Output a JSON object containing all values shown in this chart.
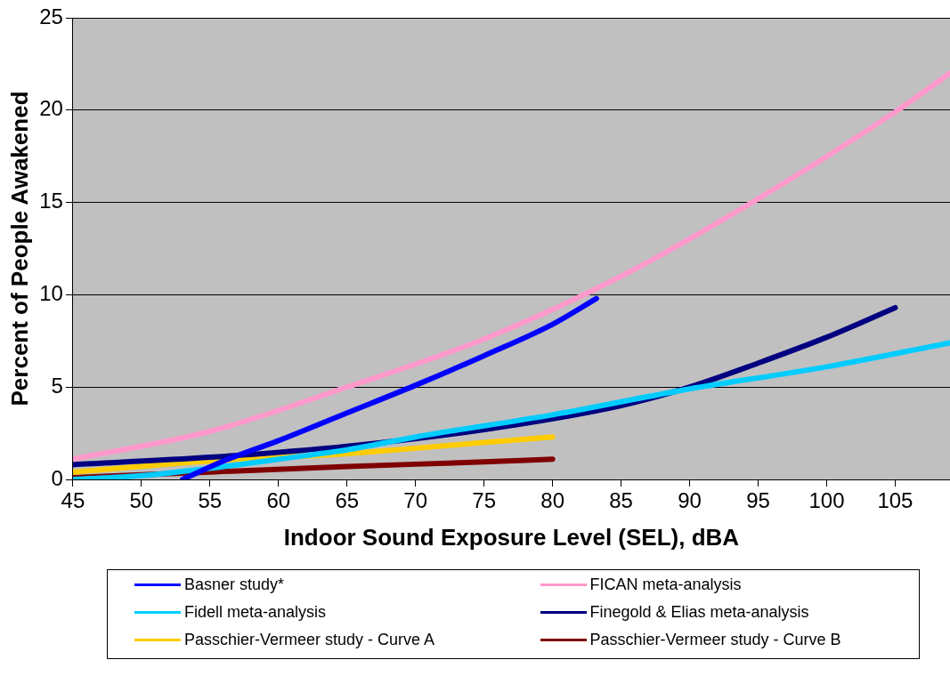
{
  "chart_data": {
    "type": "line",
    "xlabel": "Indoor Sound Exposure Level (SEL), dBA",
    "ylabel": "Percent of People Awakened",
    "xlim": [
      45,
      109
    ],
    "xticks": [
      45,
      50,
      55,
      60,
      65,
      70,
      75,
      80,
      85,
      90,
      95,
      100,
      105
    ],
    "ylim": [
      0,
      25
    ],
    "yticks": [
      0,
      5,
      10,
      15,
      20,
      25
    ],
    "grid": "y",
    "legend": "bottom",
    "marker": "none",
    "line_style": "solid",
    "series": [
      {
        "name": "Basner study*",
        "color": "#0000ff",
        "x": [
          53,
          56,
          60,
          65,
          70,
          75,
          80,
          83.2
        ],
        "values": [
          0,
          1.0,
          2.1,
          3.6,
          5.1,
          6.7,
          8.4,
          9.8
        ]
      },
      {
        "name": "FICAN meta-analysis",
        "color": "#ff99cc",
        "x": [
          45,
          55,
          65,
          75,
          85,
          95,
          105,
          109
        ],
        "values": [
          1.1,
          2.6,
          5.0,
          7.6,
          11.0,
          15.2,
          19.9,
          22.0
        ]
      },
      {
        "name": "Fidell meta-analysis",
        "color": "#00ccff",
        "x": [
          45,
          50,
          55,
          60,
          65,
          70,
          80,
          90,
          100,
          109
        ],
        "values": [
          0,
          0.2,
          0.6,
          1.1,
          1.6,
          2.3,
          3.5,
          4.9,
          6.1,
          7.4
        ]
      },
      {
        "name": "Finegold & Elias meta-analysis",
        "color": "#000080",
        "x": [
          45,
          55,
          65,
          75,
          85,
          90,
          95,
          100,
          105
        ],
        "values": [
          0.8,
          1.2,
          1.8,
          2.7,
          4.0,
          5.0,
          6.3,
          7.7,
          9.3
        ]
      },
      {
        "name": "Passchier-Vermeer study - Curve A",
        "color": "#ffcc00",
        "x": [
          45,
          55,
          65,
          75,
          80
        ],
        "values": [
          0.4,
          1.0,
          1.4,
          2.0,
          2.3
        ]
      },
      {
        "name": "Passchier-Vermeer study - Curve B",
        "color": "#800000",
        "x": [
          45,
          55,
          65,
          75,
          80
        ],
        "values": [
          0.1,
          0.4,
          0.7,
          0.95,
          1.1
        ]
      }
    ]
  }
}
